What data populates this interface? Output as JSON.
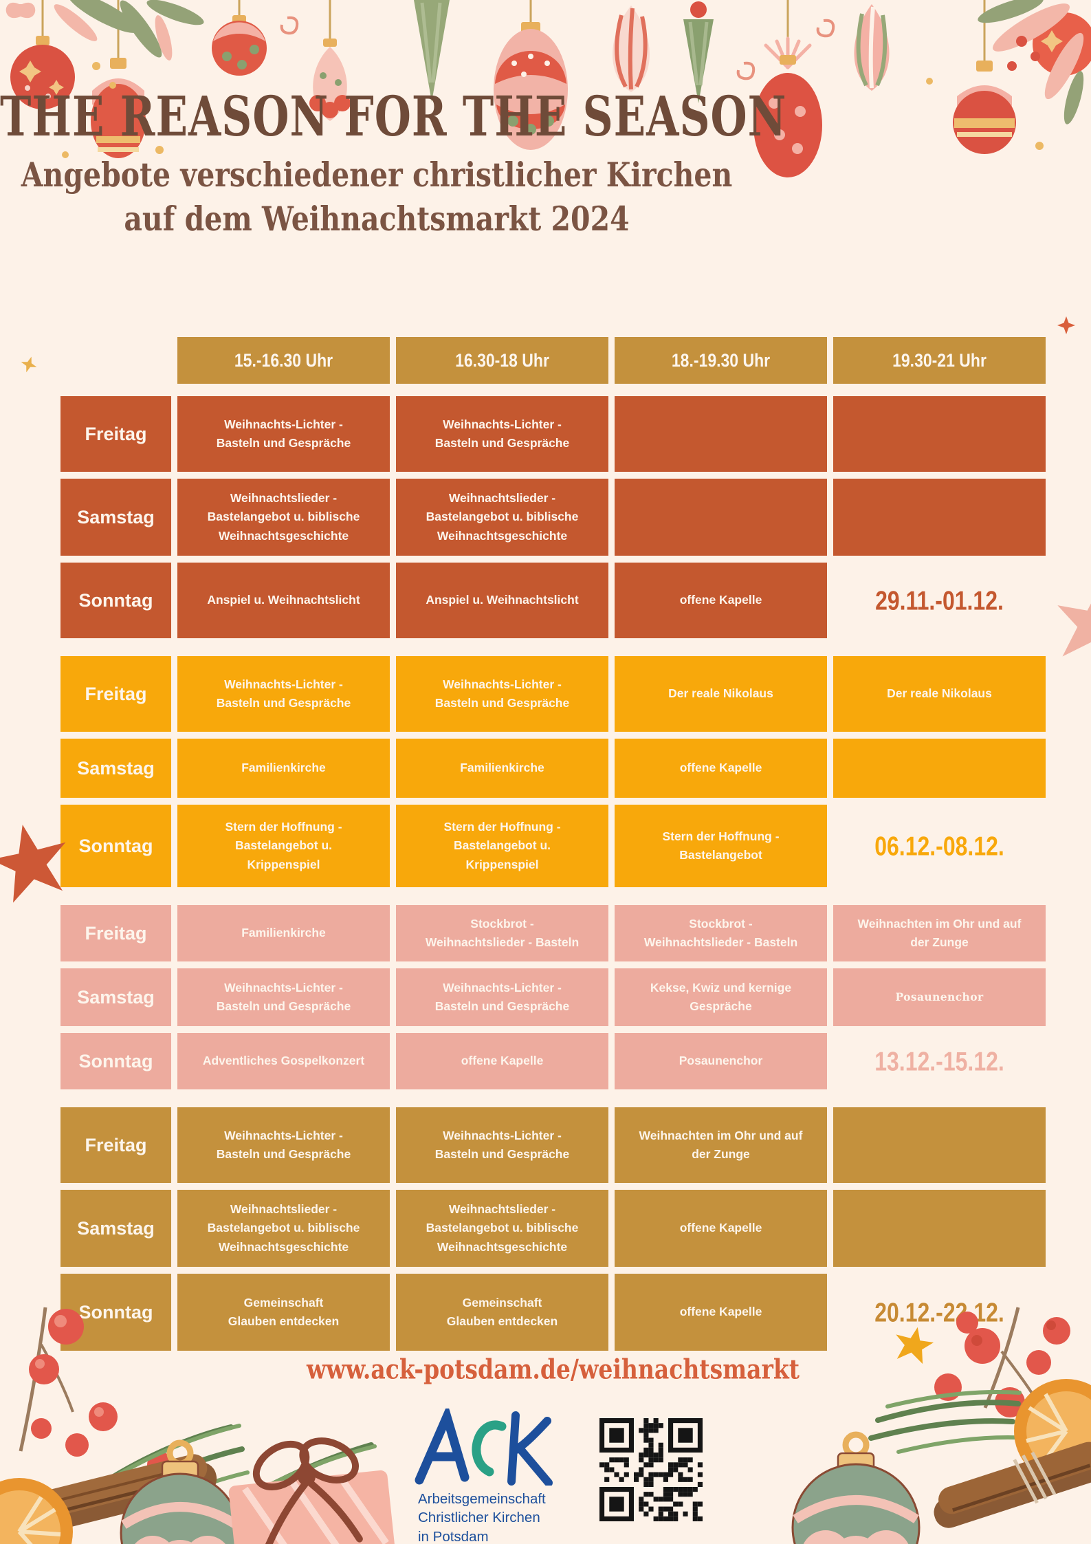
{
  "page": {
    "title": "THE REASON FOR THE SEASON",
    "subtitle_line1": "Angebote verschiedener christlicher Kirchen",
    "subtitle_line2": "auf dem Weihnachtsmarkt 2024",
    "url": "www.ack-potsdam.de/weihnachtsmarkt"
  },
  "colors": {
    "background": "#fdf2e8",
    "title_brown": "#6f4b39",
    "weekend1_rust": "#c4582f",
    "weekend2_amber": "#f8a80b",
    "weekend3_pink": "#edab9e",
    "weekend4_gold": "#c4913d",
    "header_gold": "#c4913d",
    "url_orange": "#d6603c",
    "logo_blue": "#1d4f9c",
    "logo_teal": "#2aa186"
  },
  "table": {
    "time_headers": [
      "15.-16.30 Uhr",
      "16.30-18 Uhr",
      "18.-19.30 Uhr",
      "19.30-21 Uhr"
    ],
    "weekends": [
      {
        "color_key": "rust",
        "date": "29.11.-01.12.",
        "rows": [
          {
            "day": "Freitag",
            "cells": [
              "Weihnachts-Lichter -\nBasteln und Gespräche",
              "Weihnachts-Lichter -\nBasteln und Gespräche",
              "",
              ""
            ]
          },
          {
            "day": "Samstag",
            "cells": [
              "Weihnachtslieder  -\nBastelangebot u. biblische\nWeihnachtsgeschichte",
              "Weihnachtslieder -\nBastelangebot u. biblische\nWeihnachtsgeschichte",
              "",
              ""
            ]
          },
          {
            "day": "Sonntag",
            "cells": [
              "Anspiel u. Weihnachtslicht",
              "Anspiel u. Weihnachtslicht",
              "offene Kapelle",
              null
            ]
          }
        ]
      },
      {
        "color_key": "amber",
        "date": "06.12.-08.12.",
        "rows": [
          {
            "day": "Freitag",
            "cells": [
              "Weihnachts-Lichter -\nBasteln und Gespräche",
              "Weihnachts-Lichter -\nBasteln und Gespräche",
              "Der reale Nikolaus",
              "Der reale Nikolaus"
            ]
          },
          {
            "day": "Samstag",
            "cells": [
              "Familienkirche",
              "Familienkirche",
              "offene Kapelle",
              ""
            ]
          },
          {
            "day": "Sonntag",
            "cells": [
              "Stern der Hoffnung -\nBastelangebot u.\nKrippenspiel",
              "Stern der Hoffnung -\nBastelangebot u.\nKrippenspiel",
              "Stern der Hoffnung -\nBastelangebot",
              null
            ]
          }
        ]
      },
      {
        "color_key": "pink",
        "date": "13.12.-15.12.",
        "rows": [
          {
            "day": "Freitag",
            "cells": [
              "Familienkirche",
              "Stockbrot -\nWeihnachtslieder - Basteln",
              "Stockbrot -\nWeihnachtslieder - Basteln",
              "Weihnachten im Ohr und auf\nder Zunge"
            ]
          },
          {
            "day": "Samstag",
            "cells": [
              "Weihnachts-Lichter -\nBasteln und Gespräche",
              "Weihnachts-Lichter -\nBasteln und Gespräche",
              "Kekse, Kwiz und kernige\nGespräche",
              {
                "text": "Posaunenchor",
                "serif": true
              }
            ]
          },
          {
            "day": "Sonntag",
            "cells": [
              "Adventliches Gospelkonzert",
              "offene Kapelle",
              "Posaunenchor",
              null
            ]
          }
        ]
      },
      {
        "color_key": "gold",
        "date": "20.12.-22.12.",
        "rows": [
          {
            "day": "Freitag",
            "cells": [
              "Weihnachts-Lichter -\nBasteln und Gespräche",
              "Weihnachts-Lichter -\nBasteln und Gespräche",
              "Weihnachten im Ohr und auf\nder Zunge",
              ""
            ]
          },
          {
            "day": "Samstag",
            "cells": [
              "Weihnachtslieder -\nBastelangebot u. biblische\nWeihnachtsgeschichte",
              "Weihnachtslieder -\nBastelangebot u. biblische\nWeihnachtsgeschichte",
              "offene Kapelle",
              ""
            ]
          },
          {
            "day": "Sonntag",
            "cells": [
              "Gemeinschaft\nGlauben entdecken",
              "Gemeinschaft\nGlauben entdecken",
              "offene Kapelle",
              null
            ]
          }
        ]
      }
    ]
  },
  "footer": {
    "logo_text": "ACK",
    "logo_line1": "Arbeitsgemeinschaft",
    "logo_line2": "Christlicher Kirchen",
    "logo_line3": "in Potsdam"
  },
  "decorations": {
    "top": "hanging-christmas-ornaments",
    "bottom_left": "watercolor-arrangement-berries-cinnamon-ornament-gift",
    "bottom_right": "watercolor-arrangement-ornament-cinnamon-orange-berries",
    "accents": [
      "orange-star",
      "pink-star",
      "gold-star",
      "sparkle"
    ]
  }
}
